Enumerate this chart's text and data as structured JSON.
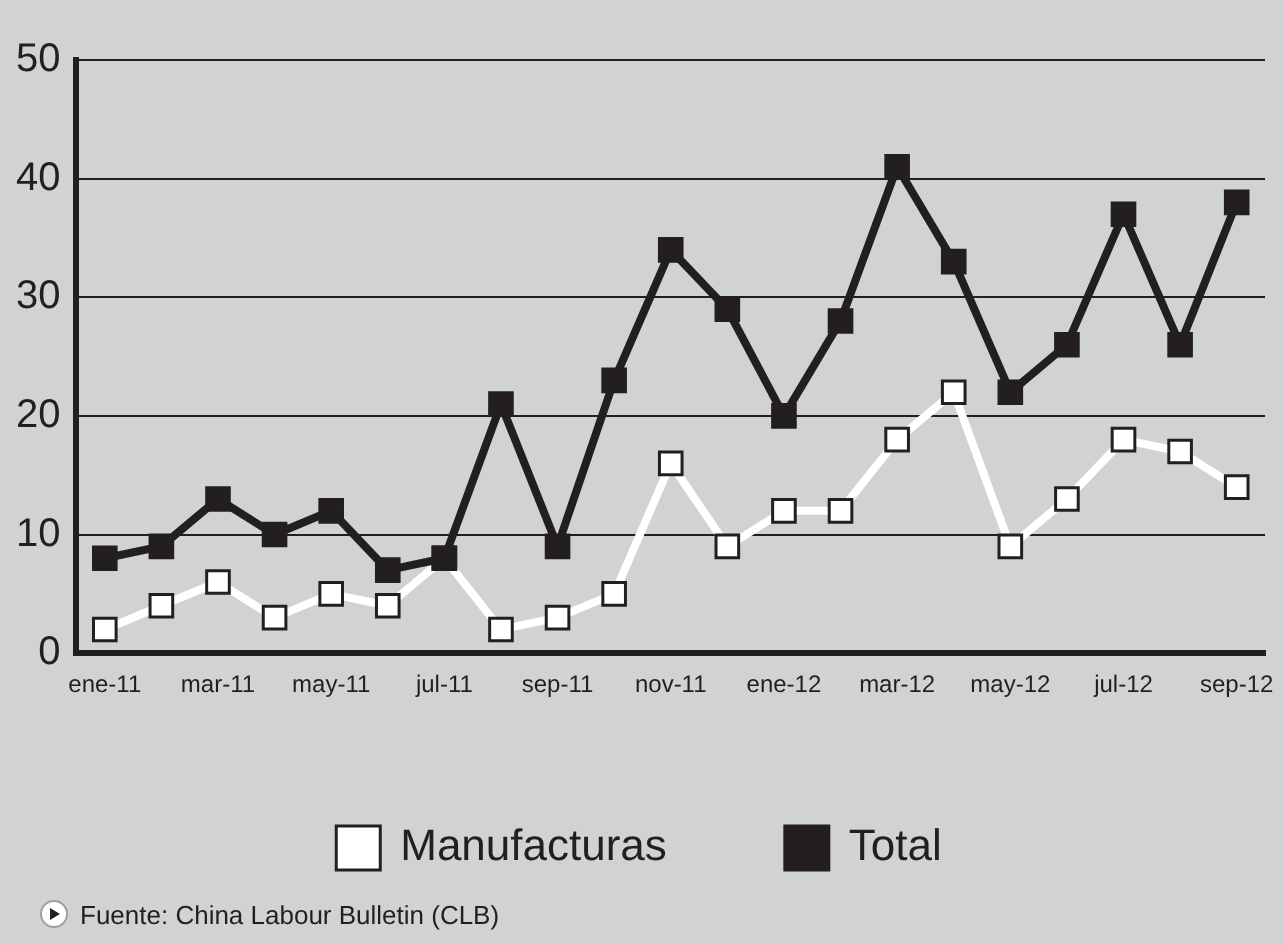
{
  "chart_data": {
    "type": "line",
    "categories": [
      "ene-11",
      null,
      "mar-11",
      null,
      "may-11",
      null,
      "jul-11",
      null,
      "sep-11",
      null,
      "nov-11",
      null,
      "ene-12",
      null,
      "mar-12",
      null,
      "may-12",
      null,
      "jul-12",
      null,
      "sep-12"
    ],
    "series": [
      {
        "name": "Manufacturas",
        "color": "#ffffff",
        "values": [
          2,
          4,
          6,
          3,
          5,
          4,
          8,
          2,
          3,
          5,
          16,
          9,
          12,
          12,
          18,
          22,
          9,
          13,
          18,
          17,
          14
        ]
      },
      {
        "name": "Total",
        "color": "#231f20",
        "values": [
          8,
          9,
          13,
          10,
          12,
          7,
          8,
          21,
          9,
          23,
          34,
          29,
          20,
          28,
          41,
          33,
          22,
          26,
          37,
          26,
          38
        ]
      }
    ],
    "ylim": [
      0,
      50
    ],
    "yticks": [
      0,
      10,
      20,
      30,
      40,
      50
    ],
    "grid": "y",
    "legend": "bottom",
    "marker": "square",
    "line_style": "solid",
    "annotations": [
      "Fuente: China Labour Bulletin (CLB)"
    ]
  }
}
